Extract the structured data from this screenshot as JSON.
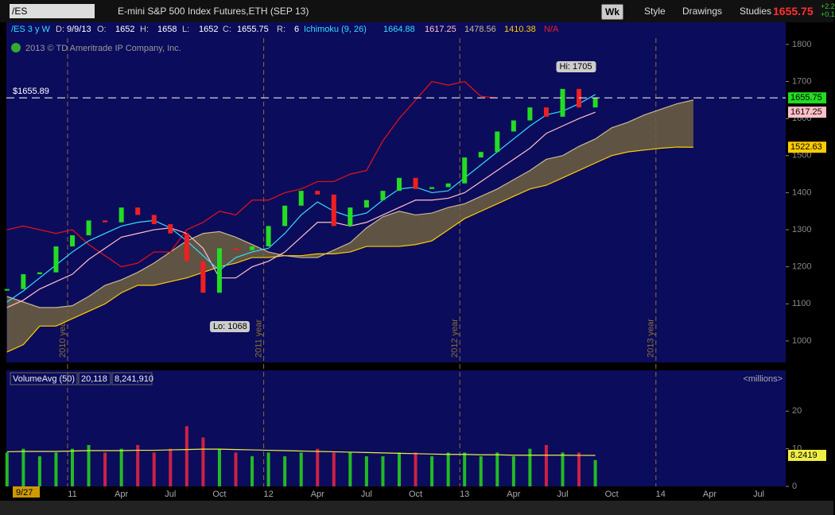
{
  "toolbar": {
    "symbol": "/ES",
    "description": "E-mini S&P 500 Index Futures,ETH (SEP 13)",
    "period": "Wk",
    "style": "Style",
    "drawings": "Drawings",
    "studies": "Studies",
    "last": "1655.75",
    "change1": "+2.2",
    "change2": "+0.1"
  },
  "info": {
    "chart_label": "/ES 3 y W",
    "d_key": "D:",
    "d": "9/9/13",
    "o_key": "O:",
    "o": "1652",
    "h_key": "H:",
    "h": "1658",
    "l_key": "L:",
    "l": "1652",
    "c_key": "C:",
    "c": "1655.75",
    "r_key": "R:",
    "r": "6",
    "study": "Ichimoku (9, 26)",
    "s1": "1664.88",
    "s2": "1617.25",
    "s3": "1478.56",
    "s4": "1410.38",
    "s5": "N/A",
    "copyright": "2013 © TD Ameritrade IP Company, Inc.",
    "date_marker": "9/27"
  },
  "chart_data": [
    {
      "type": "candlestick",
      "categories": [
        null,
        null,
        null,
        null,
        "11",
        null,
        null,
        "Apr",
        null,
        null,
        "Jul",
        null,
        null,
        "Oct",
        null,
        null,
        "12",
        null,
        null,
        "Apr",
        null,
        null,
        "Jul",
        null,
        null,
        "Oct",
        null,
        null,
        "13",
        null,
        null,
        "Apr",
        null,
        null,
        "Jul",
        null,
        null,
        "Oct",
        null,
        null,
        "14",
        null,
        null,
        "Apr",
        null,
        null,
        "Jul",
        null
      ],
      "up_color": "#22dd22",
      "down_color": "#ee2020",
      "series": [
        {
          "color": "#22dd22",
          "values": [
            1140,
            1180,
            1185,
            1255,
            1285,
            1325,
            1320,
            1360,
            1340,
            1315,
            1290,
            1215,
            1130,
            1250,
            1245,
            1255,
            1310,
            1365,
            1405,
            1395,
            1310,
            1360,
            1380,
            1405,
            1440,
            1410,
            1415,
            1425,
            1495,
            1510,
            1565,
            1595,
            1630,
            1605,
            1680,
            1630,
            1655.75,
            null,
            null,
            null,
            null,
            null,
            null,
            null,
            null,
            null,
            null,
            null
          ]
        },
        {
          "color": "#ffc0c8",
          "values": [
            1090,
            1110,
            1140,
            1160,
            1180,
            1220,
            1250,
            1280,
            1290,
            1300,
            1305,
            1290,
            1250,
            1170,
            1170,
            1200,
            1215,
            1240,
            1280,
            1320,
            1320,
            1310,
            1320,
            1340,
            1360,
            1380,
            1380,
            1385,
            1400,
            1430,
            1460,
            1490,
            1520,
            1560,
            1580,
            1600,
            1617.25,
            null,
            null,
            null,
            null,
            null,
            null,
            null,
            null,
            null,
            null,
            null
          ]
        },
        {
          "color": "#33ddff",
          "values": [
            1105,
            1135,
            1170,
            1205,
            1240,
            1270,
            1290,
            1310,
            1320,
            1325,
            1305,
            1270,
            1230,
            1190,
            1225,
            1240,
            1250,
            1290,
            1340,
            1375,
            1350,
            1335,
            1345,
            1380,
            1410,
            1415,
            1400,
            1405,
            1440,
            1475,
            1510,
            1545,
            1580,
            1610,
            1620,
            1640,
            1664.88,
            null,
            null,
            null,
            null,
            null,
            null,
            null,
            null,
            null,
            null,
            null
          ]
        },
        {
          "color": "#ee1111",
          "values": [
            1300,
            1310,
            1300,
            1290,
            1300,
            1260,
            1230,
            1200,
            1210,
            1240,
            1240,
            1300,
            1320,
            1350,
            1340,
            1380,
            1380,
            1400,
            1410,
            1430,
            1430,
            1450,
            1460,
            1540,
            1600,
            1650,
            1700,
            1690,
            1700,
            1660,
            1655.75,
            null,
            null,
            null,
            null,
            null,
            null,
            null,
            null,
            null,
            null,
            null,
            null,
            null,
            null,
            null,
            null,
            null
          ]
        },
        {
          "color": "#c8b890",
          "values": [
            1120,
            1105,
            1090,
            1090,
            1095,
            1120,
            1150,
            1165,
            1185,
            1210,
            1240,
            1270,
            1290,
            1295,
            1280,
            1260,
            1240,
            1230,
            1225,
            1225,
            1245,
            1265,
            1305,
            1335,
            1350,
            1340,
            1345,
            1360,
            1370,
            1390,
            1410,
            1435,
            1460,
            1490,
            1500,
            1525,
            1545,
            1575,
            1590,
            1610,
            1625,
            1640,
            1650,
            null,
            null,
            null,
            null,
            null
          ]
        },
        {
          "color": "#ffcc00",
          "values": [
            970,
            990,
            1040,
            1040,
            1060,
            1080,
            1100,
            1130,
            1150,
            1150,
            1160,
            1170,
            1185,
            1200,
            1210,
            1225,
            1225,
            1230,
            1230,
            1235,
            1235,
            1240,
            1255,
            1255,
            1255,
            1260,
            1270,
            1300,
            1330,
            1350,
            1370,
            1390,
            1410,
            1420,
            1440,
            1460,
            1480,
            1500,
            1510,
            1515,
            1520,
            1523,
            1522.63,
            null,
            null,
            null,
            null,
            null
          ]
        }
      ],
      "cloud_color": "#6e6040",
      "ylim": [
        942,
        1817
      ],
      "yticks": [
        1000,
        1100,
        1200,
        1300,
        1400,
        1500,
        1600,
        1700,
        1800
      ],
      "reference_line": {
        "value": 1655.89,
        "label": "$1655.89"
      },
      "high_label": "Hi: 1705",
      "low_label": "Lo: 1068",
      "year_labels": [
        "2010 year",
        "2011 year",
        "2012 year",
        "2013 year"
      ]
    },
    {
      "type": "bar",
      "legend_texts": [
        "VolumeAvg (50)",
        "20,118",
        "8,241,910",
        "<millions>"
      ],
      "values": [
        9,
        10,
        8,
        9,
        10,
        11,
        9,
        10,
        11,
        9,
        10,
        16,
        13,
        10,
        9,
        8,
        9,
        8,
        9,
        10,
        9,
        9,
        8,
        8,
        9,
        9,
        8,
        9,
        9,
        8,
        9,
        8,
        10,
        11,
        9,
        9,
        7,
        null,
        null,
        null,
        null,
        null,
        null,
        null,
        null,
        null,
        null,
        null
      ],
      "avg": {
        "color": "#eeee44",
        "values": [
          9.2,
          9.3,
          9.3,
          9.3,
          9.4,
          9.5,
          9.5,
          9.5,
          9.6,
          9.6,
          9.7,
          9.8,
          9.9,
          9.9,
          9.8,
          9.7,
          9.6,
          9.5,
          9.4,
          9.3,
          9.2,
          9.1,
          9,
          8.9,
          8.8,
          8.7,
          8.6,
          8.5,
          8.5,
          8.4,
          8.4,
          8.3,
          8.3,
          8.3,
          8.3,
          8.25,
          8.2419,
          null,
          null,
          null,
          null,
          null,
          null,
          null,
          null,
          null,
          null,
          null
        ]
      },
      "ylim": [
        0,
        30
      ],
      "yticks": [
        0,
        10,
        20
      ]
    }
  ]
}
